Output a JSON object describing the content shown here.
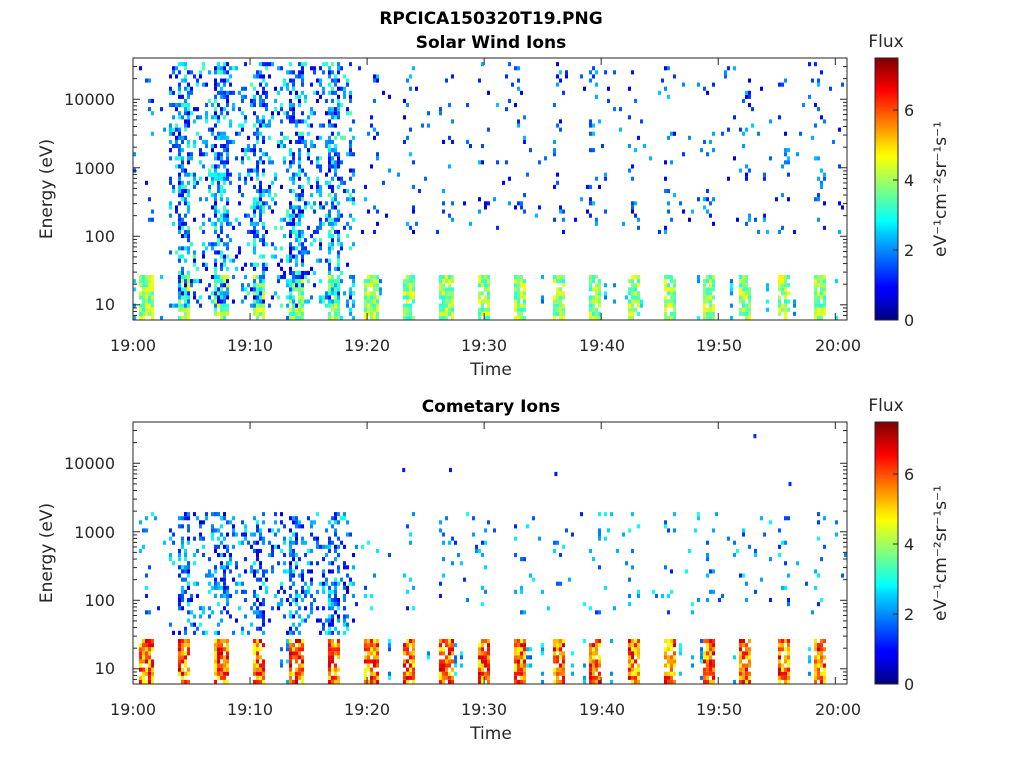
{
  "figure": {
    "title": "RPCICA150320T19.PNG"
  },
  "colorbar": {
    "label": "Flux",
    "unit": "eV⁻¹cm⁻²sr⁻¹s⁻¹",
    "range": [
      0,
      7.5
    ],
    "ticks": [
      "0",
      "2",
      "4",
      "6"
    ],
    "colormap": "jet"
  },
  "chart_data": [
    {
      "type": "heatmap",
      "title": "Solar Wind Ions",
      "xlabel": "Time",
      "ylabel": "Energy (eV)",
      "x_range": [
        "19:00",
        "20:01"
      ],
      "x_ticks": [
        "19:00",
        "19:10",
        "19:20",
        "19:30",
        "19:40",
        "19:50",
        "20:00"
      ],
      "y_scale": "log",
      "y_range": [
        6,
        40000
      ],
      "y_ticks": [
        "10",
        "100",
        "1000",
        "10000"
      ],
      "z_label": "Flux",
      "z_range": [
        0,
        7.5
      ],
      "grid": false,
      "features": {
        "low_energy_band": {
          "energy_range": [
            6,
            25
          ],
          "flux_range": [
            3,
            4.8
          ],
          "burst_interval_min": 3.2
        },
        "dense_period": {
          "time_range": [
            "19:03",
            "19:19"
          ],
          "energy_range": [
            8,
            40000
          ],
          "flux_range": [
            0.5,
            3.5
          ]
        },
        "sparse_background": {
          "energy_range": [
            100,
            40000
          ],
          "flux_range": [
            0.5,
            2.5
          ]
        }
      }
    },
    {
      "type": "heatmap",
      "title": "Cometary Ions",
      "xlabel": "Time",
      "ylabel": "Energy (eV)",
      "x_range": [
        "19:00",
        "20:01"
      ],
      "x_ticks": [
        "19:00",
        "19:10",
        "19:20",
        "19:30",
        "19:40",
        "19:50",
        "20:00"
      ],
      "y_scale": "log",
      "y_range": [
        6,
        40000
      ],
      "y_ticks": [
        "10",
        "100",
        "1000",
        "10000"
      ],
      "z_label": "Flux",
      "z_range": [
        0,
        7.5
      ],
      "grid": false,
      "features": {
        "low_energy_band": {
          "energy_range": [
            6,
            25
          ],
          "flux_range": [
            4.5,
            7
          ],
          "burst_interval_min": 3.2
        },
        "dense_period": {
          "time_range": [
            "19:03",
            "19:19"
          ],
          "energy_range": [
            30,
            2000
          ],
          "flux_range": [
            0.5,
            3
          ]
        },
        "sparse_background": {
          "energy_range": [
            60,
            2000
          ],
          "flux_range": [
            1,
            3
          ]
        },
        "isolated_points": [
          {
            "time": "19:23",
            "energy": 8000,
            "flux": 1
          },
          {
            "time": "19:27",
            "energy": 8000,
            "flux": 1
          },
          {
            "time": "19:36",
            "energy": 7000,
            "flux": 1
          },
          {
            "time": "19:53",
            "energy": 25000,
            "flux": 1.2
          },
          {
            "time": "19:56",
            "energy": 5000,
            "flux": 1.2
          }
        ]
      }
    }
  ]
}
